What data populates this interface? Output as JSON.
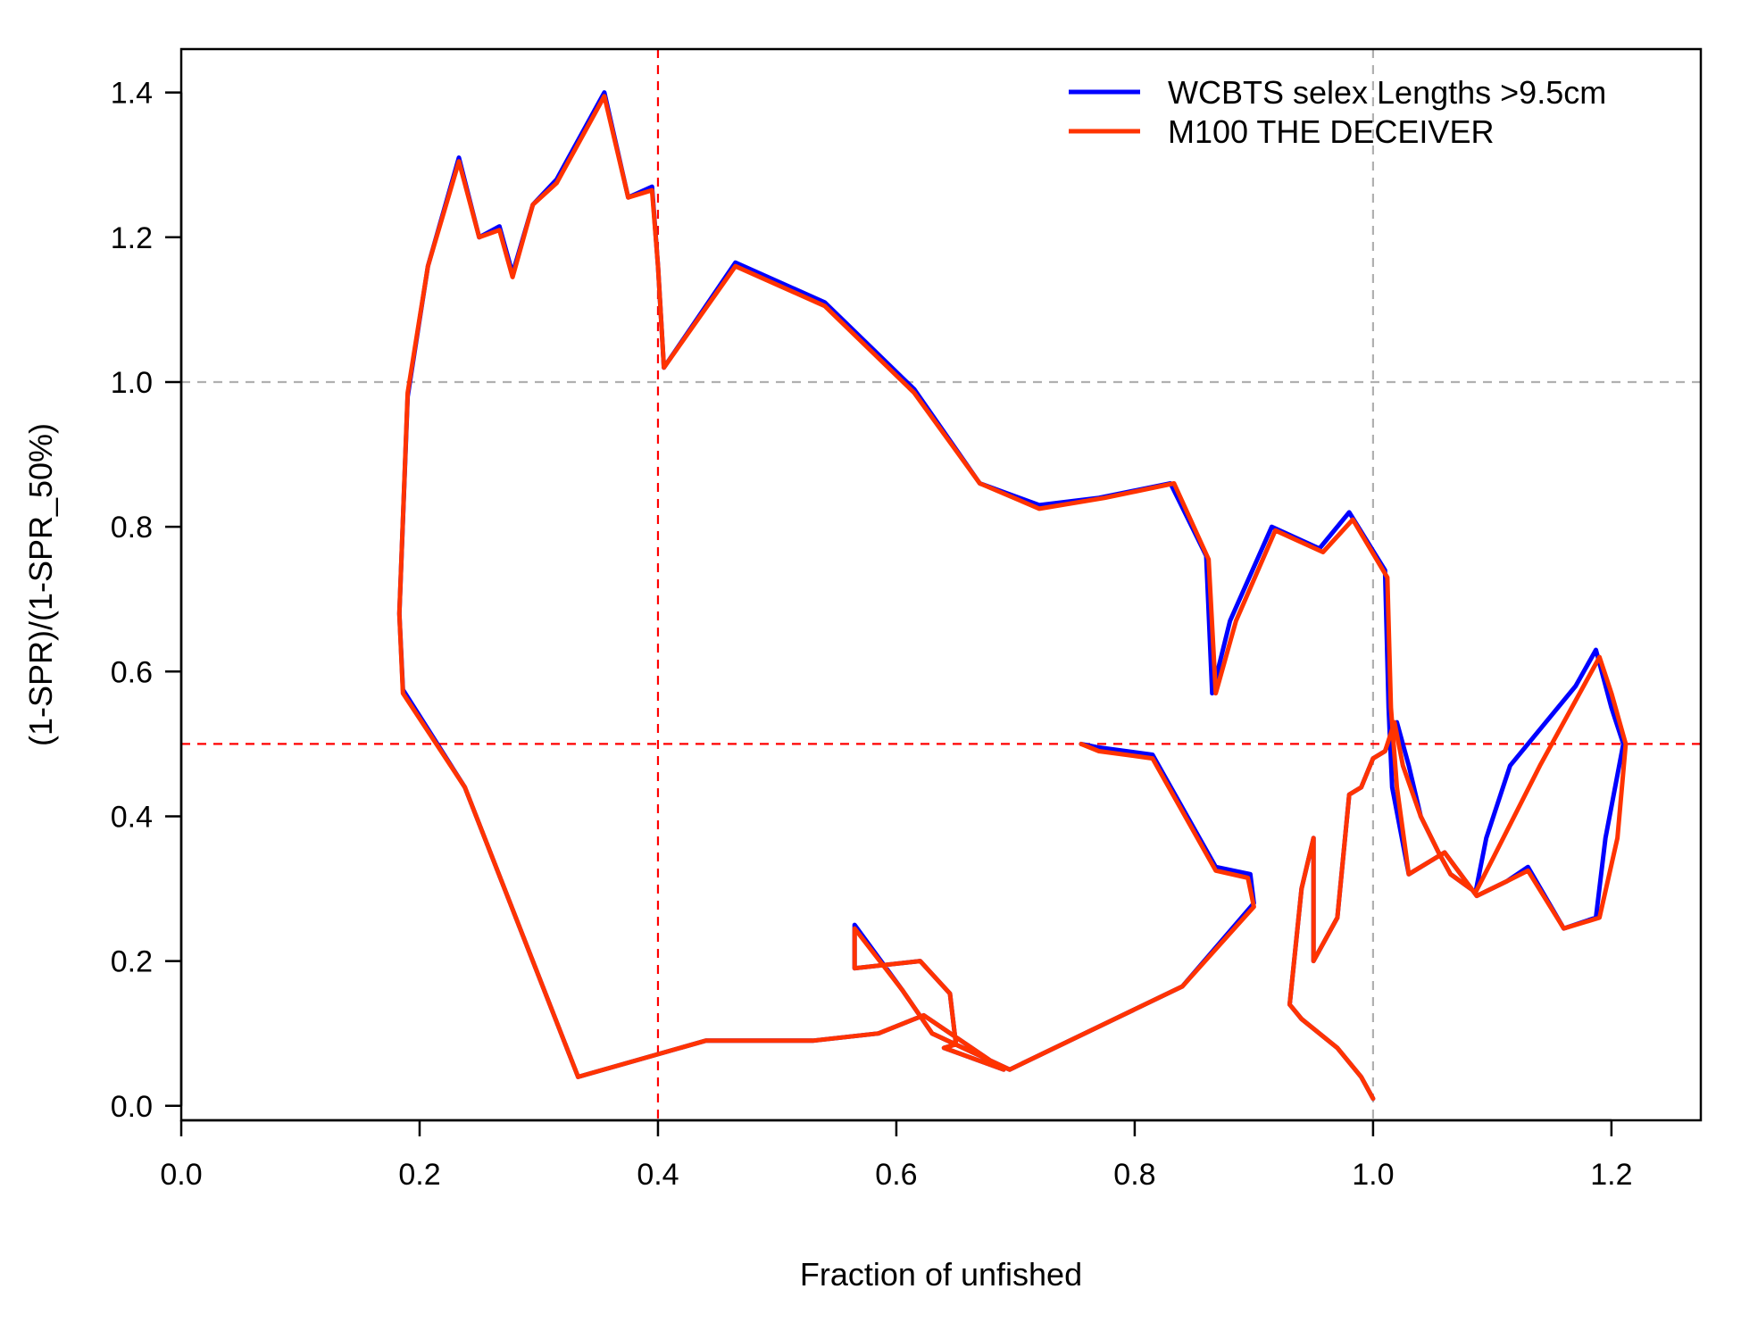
{
  "chart_data": {
    "type": "line",
    "title": "",
    "xlabel": "Fraction of unfished",
    "ylabel": "(1-SPR)/(1-SPR_50%)",
    "xlim": [
      0.0,
      1.275
    ],
    "ylim": [
      -0.02,
      1.46
    ],
    "xticks": [
      0.0,
      0.2,
      0.4,
      0.6,
      0.8,
      1.0,
      1.2
    ],
    "xtick_labels": [
      "0.0",
      "0.2",
      "0.4",
      "0.6",
      "0.8",
      "1.0",
      "1.2"
    ],
    "yticks": [
      0.0,
      0.2,
      0.4,
      0.6,
      0.8,
      1.0,
      1.2,
      1.4
    ],
    "ytick_labels": [
      "0.0",
      "0.2",
      "0.4",
      "0.6",
      "0.8",
      "1.0",
      "1.2",
      "1.4"
    ],
    "grid": false,
    "legend_position": "top-right",
    "reference_lines": [
      {
        "orientation": "vertical",
        "value": 0.4,
        "color": "#ff0000",
        "style": "dashed"
      },
      {
        "orientation": "vertical",
        "value": 1.0,
        "color": "#b0b0b0",
        "style": "dashed"
      },
      {
        "orientation": "horizontal",
        "value": 0.5,
        "color": "#ff0000",
        "style": "dashed"
      },
      {
        "orientation": "horizontal",
        "value": 1.0,
        "color": "#b0b0b0",
        "style": "dashed"
      }
    ],
    "series": [
      {
        "name": "WCBTS selex Lengths >9.5cm",
        "color": "#0000ff",
        "points": [
          [
            1.0,
            0.01
          ],
          [
            0.99,
            0.04
          ],
          [
            0.97,
            0.08
          ],
          [
            0.94,
            0.12
          ],
          [
            0.93,
            0.14
          ],
          [
            0.94,
            0.3
          ],
          [
            0.95,
            0.37
          ],
          [
            0.95,
            0.2
          ],
          [
            0.97,
            0.26
          ],
          [
            0.98,
            0.43
          ],
          [
            0.99,
            0.44
          ],
          [
            1.0,
            0.48
          ],
          [
            1.01,
            0.49
          ],
          [
            1.02,
            0.53
          ],
          [
            1.03,
            0.47
          ],
          [
            1.04,
            0.4
          ],
          [
            1.055,
            0.35
          ],
          [
            1.065,
            0.32
          ],
          [
            1.086,
            0.295
          ],
          [
            1.095,
            0.37
          ],
          [
            1.115,
            0.47
          ],
          [
            1.17,
            0.58
          ],
          [
            1.187,
            0.63
          ],
          [
            1.2,
            0.55
          ],
          [
            1.21,
            0.5
          ],
          [
            1.195,
            0.37
          ],
          [
            1.187,
            0.26
          ],
          [
            1.16,
            0.245
          ],
          [
            1.13,
            0.33
          ],
          [
            1.112,
            0.31
          ],
          [
            1.087,
            0.29
          ],
          [
            1.06,
            0.35
          ],
          [
            1.03,
            0.32
          ],
          [
            1.016,
            0.44
          ],
          [
            1.013,
            0.55
          ],
          [
            1.01,
            0.74
          ],
          [
            0.98,
            0.82
          ],
          [
            0.955,
            0.77
          ],
          [
            0.915,
            0.8
          ],
          [
            0.88,
            0.67
          ],
          [
            0.865,
            0.57
          ],
          [
            0.86,
            0.76
          ],
          [
            0.83,
            0.86
          ],
          [
            0.77,
            0.84
          ],
          [
            0.72,
            0.83
          ],
          [
            0.67,
            0.86
          ],
          [
            0.615,
            0.99
          ],
          [
            0.54,
            1.11
          ],
          [
            0.465,
            1.165
          ],
          [
            0.405,
            1.02
          ],
          [
            0.4,
            1.16
          ],
          [
            0.395,
            1.27
          ],
          [
            0.375,
            1.255
          ],
          [
            0.355,
            1.4
          ],
          [
            0.315,
            1.28
          ],
          [
            0.295,
            1.245
          ],
          [
            0.278,
            1.15
          ],
          [
            0.267,
            1.215
          ],
          [
            0.25,
            1.2
          ],
          [
            0.233,
            1.31
          ],
          [
            0.207,
            1.16
          ],
          [
            0.19,
            0.98
          ],
          [
            0.183,
            0.68
          ],
          [
            0.186,
            0.575
          ],
          [
            0.238,
            0.44
          ],
          [
            0.333,
            0.04
          ],
          [
            0.44,
            0.09
          ],
          [
            0.53,
            0.09
          ],
          [
            0.585,
            0.1
          ],
          [
            0.623,
            0.125
          ],
          [
            0.69,
            0.05
          ],
          [
            0.64,
            0.08
          ],
          [
            0.65,
            0.085
          ],
          [
            0.645,
            0.155
          ],
          [
            0.62,
            0.2
          ],
          [
            0.565,
            0.19
          ],
          [
            0.565,
            0.25
          ],
          [
            0.605,
            0.16
          ],
          [
            0.63,
            0.1
          ],
          [
            0.695,
            0.05
          ],
          [
            0.84,
            0.165
          ],
          [
            0.9,
            0.28
          ],
          [
            0.897,
            0.32
          ],
          [
            0.868,
            0.33
          ],
          [
            0.815,
            0.485
          ],
          [
            0.77,
            0.495
          ],
          [
            0.755,
            0.5
          ]
        ]
      },
      {
        "name": "M100 THE DECEIVER",
        "color": "#ff3300",
        "points": [
          [
            1.0,
            0.01
          ],
          [
            0.99,
            0.04
          ],
          [
            0.97,
            0.08
          ],
          [
            0.94,
            0.12
          ],
          [
            0.93,
            0.14
          ],
          [
            0.94,
            0.3
          ],
          [
            0.95,
            0.37
          ],
          [
            0.95,
            0.2
          ],
          [
            0.97,
            0.26
          ],
          [
            0.98,
            0.43
          ],
          [
            0.99,
            0.44
          ],
          [
            1.0,
            0.48
          ],
          [
            1.01,
            0.49
          ],
          [
            1.018,
            0.53
          ],
          [
            1.025,
            0.47
          ],
          [
            1.04,
            0.4
          ],
          [
            1.055,
            0.35
          ],
          [
            1.065,
            0.32
          ],
          [
            1.086,
            0.295
          ],
          [
            1.1,
            0.34
          ],
          [
            1.14,
            0.47
          ],
          [
            1.19,
            0.62
          ],
          [
            1.2,
            0.57
          ],
          [
            1.212,
            0.5
          ],
          [
            1.205,
            0.37
          ],
          [
            1.19,
            0.26
          ],
          [
            1.16,
            0.245
          ],
          [
            1.13,
            0.325
          ],
          [
            1.112,
            0.31
          ],
          [
            1.087,
            0.29
          ],
          [
            1.06,
            0.35
          ],
          [
            1.03,
            0.32
          ],
          [
            1.02,
            0.44
          ],
          [
            1.015,
            0.55
          ],
          [
            1.012,
            0.73
          ],
          [
            0.983,
            0.81
          ],
          [
            0.958,
            0.765
          ],
          [
            0.918,
            0.795
          ],
          [
            0.885,
            0.67
          ],
          [
            0.868,
            0.57
          ],
          [
            0.862,
            0.755
          ],
          [
            0.833,
            0.86
          ],
          [
            0.775,
            0.84
          ],
          [
            0.72,
            0.825
          ],
          [
            0.67,
            0.86
          ],
          [
            0.615,
            0.985
          ],
          [
            0.54,
            1.105
          ],
          [
            0.465,
            1.16
          ],
          [
            0.405,
            1.02
          ],
          [
            0.4,
            1.16
          ],
          [
            0.395,
            1.265
          ],
          [
            0.375,
            1.255
          ],
          [
            0.355,
            1.395
          ],
          [
            0.315,
            1.275
          ],
          [
            0.295,
            1.245
          ],
          [
            0.278,
            1.145
          ],
          [
            0.267,
            1.21
          ],
          [
            0.25,
            1.2
          ],
          [
            0.233,
            1.305
          ],
          [
            0.207,
            1.16
          ],
          [
            0.19,
            0.985
          ],
          [
            0.183,
            0.68
          ],
          [
            0.186,
            0.57
          ],
          [
            0.238,
            0.44
          ],
          [
            0.333,
            0.04
          ],
          [
            0.44,
            0.09
          ],
          [
            0.53,
            0.09
          ],
          [
            0.585,
            0.1
          ],
          [
            0.623,
            0.125
          ],
          [
            0.69,
            0.05
          ],
          [
            0.64,
            0.08
          ],
          [
            0.65,
            0.085
          ],
          [
            0.645,
            0.155
          ],
          [
            0.62,
            0.2
          ],
          [
            0.565,
            0.19
          ],
          [
            0.565,
            0.245
          ],
          [
            0.605,
            0.16
          ],
          [
            0.63,
            0.1
          ],
          [
            0.695,
            0.05
          ],
          [
            0.84,
            0.165
          ],
          [
            0.9,
            0.275
          ],
          [
            0.895,
            0.315
          ],
          [
            0.868,
            0.325
          ],
          [
            0.815,
            0.48
          ],
          [
            0.77,
            0.49
          ],
          [
            0.755,
            0.5
          ]
        ]
      }
    ]
  }
}
